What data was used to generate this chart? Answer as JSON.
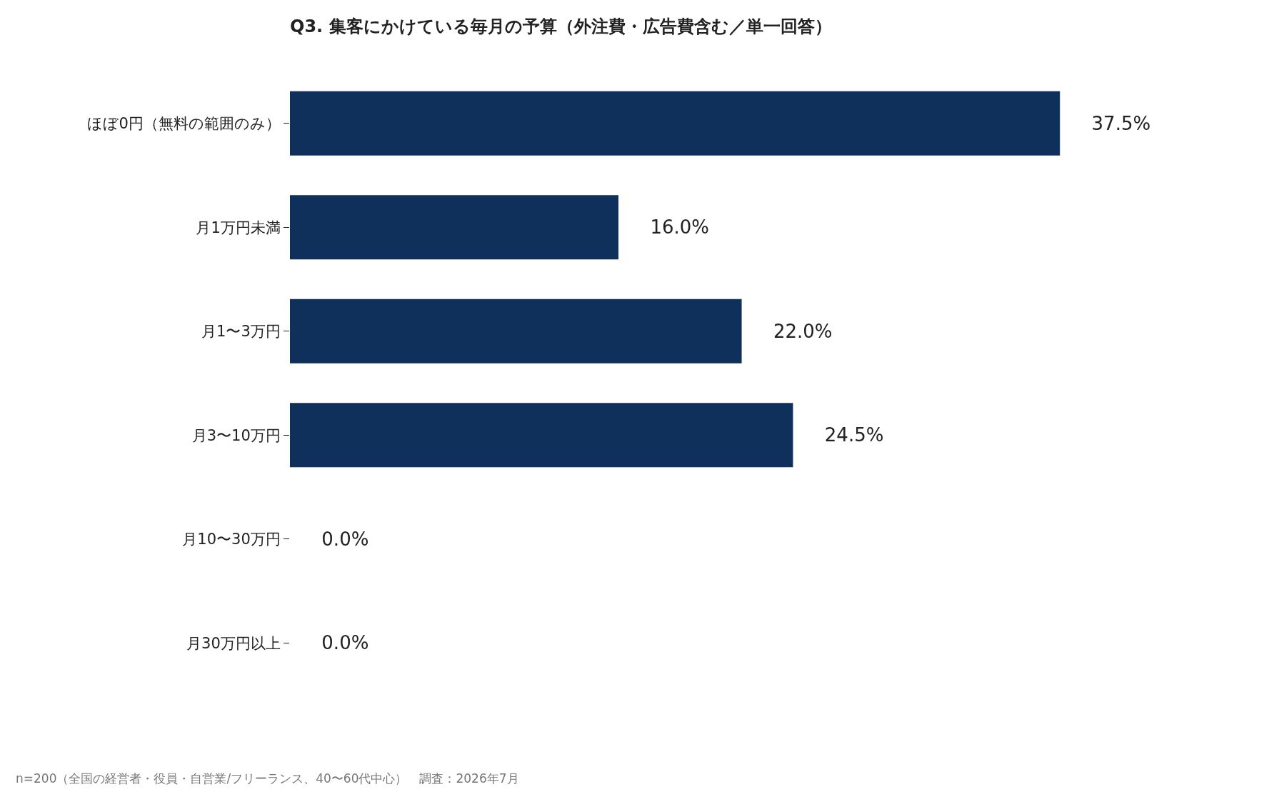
{
  "chart_data": {
    "type": "bar",
    "orientation": "horizontal",
    "title": "Q3. 集客にかけている毎月の予算（外注費・広告費含む／単一回答）",
    "categories": [
      "ほぼ0円（無料の範囲のみ）",
      "月1万円未満",
      "月1〜3万円",
      "月3〜10万円",
      "月10〜30万円",
      "月30万円以上"
    ],
    "values": [
      37.5,
      16.0,
      22.0,
      24.5,
      0.0,
      0.0
    ],
    "value_labels": [
      "37.5%",
      "16.0%",
      "22.0%",
      "24.5%",
      "0.0%",
      "0.0%"
    ],
    "color": "#10305c",
    "tick_labels": "y",
    "annotations": [
      "n=200（全国の経営者・役員・自営業/フリーランス、40〜60代中心）　調査：2026年7月"
    ]
  }
}
